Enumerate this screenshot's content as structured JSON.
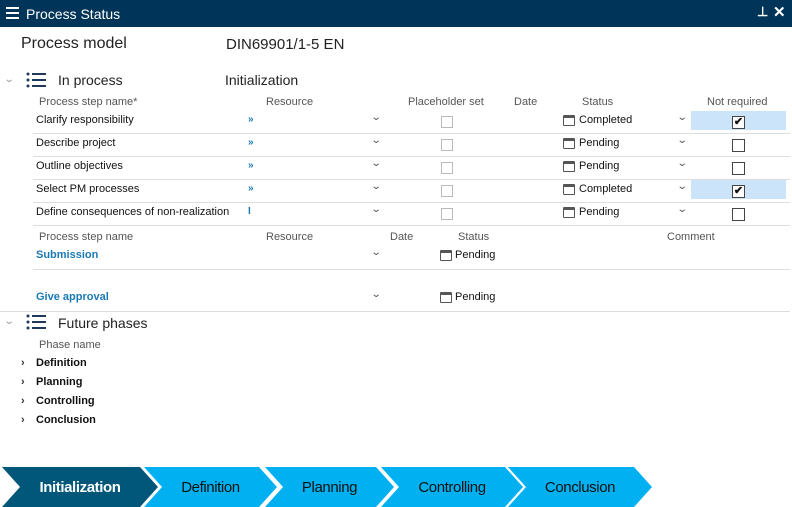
{
  "window": {
    "title": "Process Status"
  },
  "header": {
    "label": "Process model",
    "value": "DIN69901/1-5 EN"
  },
  "in_process": {
    "title": "In process",
    "phase": "Initialization",
    "columns": [
      "Process step name*",
      "Resource",
      "Placeholder set",
      "Date",
      "Status",
      "Not required"
    ],
    "rows": [
      {
        "name": "Clarify responsibility",
        "resource": "»",
        "status": "Completed",
        "not_required": true
      },
      {
        "name": "Describe project",
        "resource": "»",
        "status": "Pending",
        "not_required": false
      },
      {
        "name": "Outline objectives",
        "resource": "»",
        "status": "Pending",
        "not_required": false
      },
      {
        "name": "Select PM processes",
        "resource": "»",
        "status": "Completed",
        "not_required": true
      },
      {
        "name": "Define consequences of non-realization",
        "resource": "I",
        "status": "Pending",
        "not_required": false
      }
    ],
    "milestone_columns": [
      "Process step name",
      "Resource",
      "Date",
      "Status",
      "Comment"
    ],
    "milestones": [
      {
        "name": "Submission",
        "status": "Pending"
      },
      {
        "name": "Give approval",
        "status": "Pending"
      }
    ]
  },
  "future": {
    "title": "Future phases",
    "column": "Phase name",
    "phases": [
      "Definition",
      "Planning",
      "Controlling",
      "Conclusion"
    ]
  },
  "phase_bar": {
    "phases": [
      "Initialization",
      "Definition",
      "Planning",
      "Controlling",
      "Conclusion"
    ],
    "active": "Initialization",
    "active_color": "#00577a",
    "inactive_color": "#00b0f0"
  },
  "check_mark": "✔"
}
